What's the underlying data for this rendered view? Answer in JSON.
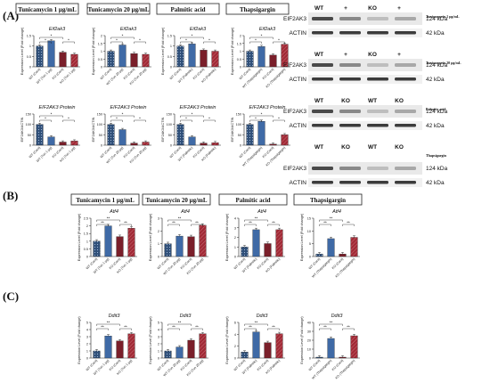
{
  "panel_labels": {
    "A": "(A)",
    "B": "(B)",
    "C": "(C)"
  },
  "colors": {
    "wt_ctrl": "#2f4f78",
    "wt_trt": "#3f6aa6",
    "ko_ctrl": "#7a1f2a",
    "ko_trt": "#a02a36",
    "line": "#333333"
  },
  "sections": {
    "A": {
      "headers": [
        "Tunicamycin 1 μg/mL",
        "Tunicamycin 20 μg/mL",
        "Palmitic acid",
        "Thapsigargin"
      ],
      "row1_title": "Eif2ak3",
      "row1_ylabel": "Expression Level (Fold change)",
      "row2_title": "EIF2AK3 Protein",
      "row2_ylabel": "EIF2AK3/ACTIN",
      "xlabels": [
        [
          "WT (Cont)",
          "WT (Tun 1 μg)",
          "KO (Cont)",
          "KO (Tun 1 μg)"
        ],
        [
          "WT (Cont)",
          "WT (Tun 20 μg)",
          "KO (Cont)",
          "KO (Tun 20 μg)"
        ],
        [
          "WT (Cont)",
          "WT (Palmitic)",
          "KO (Cont)",
          "KO (Palmitic)"
        ],
        [
          "WT (Cont)",
          "WT (Thapsigargin)",
          "KO (Cont)",
          "KO (Thapsigargin)"
        ]
      ]
    },
    "B": {
      "headers": [
        "Tunicamycin 1 μg/mL",
        "Tunicamycin 20 μg/mL",
        "Palmitic acid",
        "Thapsigargin"
      ],
      "title": "Atf4",
      "ylabel": "Expression Level (Fold change)"
    },
    "C": {
      "title": "Ddit3",
      "ylabel": "Expression Level (Fold change)"
    },
    "sig": "*",
    "sig2": "**"
  },
  "blots": [
    {
      "header": [
        "WT",
        "+",
        "KO",
        "+"
      ],
      "treatment": "Tunicamycin 1 μg/mL",
      "rows": [
        "EIF2AK3",
        "ACTIN"
      ],
      "sizes": [
        "124 kDa",
        "42 kDa"
      ]
    },
    {
      "header": [
        "WT",
        "+",
        "KO",
        "+"
      ],
      "treatment": "Tunicamycin 20 μg/mL",
      "rows": [
        "EIF2AK3",
        "ACTIN"
      ],
      "sizes": [
        "124 kDa",
        "42 kDa"
      ]
    },
    {
      "header": [
        "WT",
        "KO",
        "WT",
        "KO"
      ],
      "treatment": "Palmitic acid",
      "rows": [
        "EIF2AK3",
        "ACTIN"
      ],
      "sizes": [
        "124 kDa",
        "42 kDa"
      ]
    },
    {
      "header": [
        "WT",
        "KO",
        "WT",
        "KO"
      ],
      "treatment": "Thapsigargin",
      "rows": [
        "EIF2AK3",
        "ACTIN"
      ],
      "sizes": [
        "124 kDa",
        "42 kDa"
      ]
    }
  ],
  "chart_data": [
    {
      "panel": "A",
      "type": "bar",
      "title": "Eif2ak3",
      "treatment": "Tunicamycin 1 μg/mL",
      "values": [
        1.0,
        1.25,
        0.7,
        0.6
      ],
      "ylim": [
        0,
        1.5
      ],
      "yticks": [
        0.0,
        0.5,
        1.0,
        1.5
      ]
    },
    {
      "panel": "A",
      "type": "bar",
      "title": "Eif2ak3",
      "treatment": "Tunicamycin 20 μg/mL",
      "values": [
        1.0,
        1.4,
        0.85,
        0.8
      ],
      "ylim": [
        0,
        2.0
      ],
      "yticks": [
        0.0,
        0.5,
        1.0,
        1.5,
        2.0
      ]
    },
    {
      "panel": "A",
      "type": "bar",
      "title": "Eif2ak3",
      "treatment": "Palmitic acid",
      "values": [
        1.0,
        1.1,
        0.8,
        0.75
      ],
      "ylim": [
        0,
        1.5
      ],
      "yticks": [
        0.0,
        0.5,
        1.0,
        1.5
      ]
    },
    {
      "panel": "A",
      "type": "bar",
      "title": "Eif2ak3",
      "treatment": "Thapsigargin",
      "values": [
        1.0,
        1.3,
        0.75,
        1.45
      ],
      "ylim": [
        0,
        2.0
      ],
      "yticks": [
        0.0,
        0.5,
        1.0,
        1.5,
        2.0
      ]
    },
    {
      "panel": "A",
      "type": "bar",
      "title": "EIF2AK3 Protein",
      "treatment": "Tunicamycin 1 μg/mL",
      "values": [
        100,
        40,
        15,
        20
      ],
      "ylim": [
        0,
        150
      ],
      "yticks": [
        0,
        50,
        100,
        150
      ]
    },
    {
      "panel": "A",
      "type": "bar",
      "title": "EIF2AK3 Protein",
      "treatment": "Tunicamycin 20 μg/mL",
      "values": [
        100,
        75,
        10,
        15
      ],
      "ylim": [
        0,
        150
      ],
      "yticks": [
        0,
        50,
        100,
        150
      ]
    },
    {
      "panel": "A",
      "type": "bar",
      "title": "EIF2AK3 Protein",
      "treatment": "Palmitic acid",
      "values": [
        100,
        40,
        10,
        12
      ],
      "ylim": [
        0,
        150
      ],
      "yticks": [
        0,
        50,
        100,
        150
      ]
    },
    {
      "panel": "A",
      "type": "bar",
      "title": "EIF2AK3 Protein",
      "treatment": "Thapsigargin",
      "values": [
        100,
        115,
        5,
        50
      ],
      "ylim": [
        0,
        150
      ],
      "yticks": [
        0,
        50,
        100,
        150
      ]
    },
    {
      "panel": "B",
      "type": "bar",
      "title": "Atf4",
      "treatment": "Tunicamycin 1 μg/mL",
      "values": [
        1.0,
        2.0,
        1.3,
        1.85
      ],
      "ylim": [
        0,
        2.5
      ],
      "yticks": [
        0.0,
        0.5,
        1.0,
        1.5,
        2.0,
        2.5
      ],
      "xlabels": [
        "WT (Cont)",
        "WT (Tun 1 μg)",
        "KO (Cont)",
        "KO (Tun 1 μg)"
      ]
    },
    {
      "panel": "B",
      "type": "bar",
      "title": "Atf4",
      "treatment": "Tunicamycin 20 μg/mL",
      "values": [
        1.0,
        1.6,
        1.55,
        2.45
      ],
      "ylim": [
        0,
        3
      ],
      "yticks": [
        0,
        1,
        2,
        3
      ],
      "xlabels": [
        "WT (Cont)",
        "WT (Tun 20 μg)",
        "KO (Cont)",
        "KO (Tun 20 μg)"
      ]
    },
    {
      "panel": "B",
      "type": "bar",
      "title": "Atf4",
      "treatment": "Palmitic acid",
      "values": [
        1.0,
        2.8,
        1.35,
        2.8
      ],
      "ylim": [
        0,
        4
      ],
      "yticks": [
        0,
        1,
        2,
        3,
        4
      ],
      "xlabels": [
        "WT (Cont)",
        "WT (Palmitic)",
        "KO (Cont)",
        "KO (Palmitic)"
      ]
    },
    {
      "panel": "B",
      "type": "bar",
      "title": "Atf4",
      "treatment": "Thapsigargin",
      "values": [
        1.0,
        7.0,
        1.0,
        7.5
      ],
      "ylim": [
        0,
        15
      ],
      "yticks": [
        0,
        5,
        10,
        15
      ],
      "xlabels": [
        "WT (Cont)",
        "WT (Thapsigargin)",
        "KO (Cont)",
        "KO (Thapsigargin)"
      ]
    },
    {
      "panel": "C",
      "type": "bar",
      "title": "Ddit3",
      "treatment": "Tunicamycin 1 μg/mL",
      "values": [
        1.0,
        3.1,
        2.4,
        3.4
      ],
      "ylim": [
        0,
        5
      ],
      "yticks": [
        0,
        1,
        2,
        3,
        4,
        5
      ],
      "xlabels": [
        "WT (Cont)",
        "WT (Tun 1 μg)",
        "KO (Cont)",
        "KO (Tun 1 μg)"
      ]
    },
    {
      "panel": "C",
      "type": "bar",
      "title": "Ddit3",
      "treatment": "Tunicamycin 20 μg/mL",
      "values": [
        1.0,
        1.55,
        2.5,
        3.4
      ],
      "ylim": [
        0,
        5
      ],
      "yticks": [
        0,
        1,
        2,
        3,
        4,
        5
      ],
      "xlabels": [
        "WT (Cont)",
        "WT (Tun 20 μg)",
        "KO (Cont)",
        "KO (Tun 20 μg)"
      ]
    },
    {
      "panel": "C",
      "type": "bar",
      "title": "Ddit3",
      "treatment": "Palmitic acid",
      "values": [
        1.0,
        4.4,
        2.6,
        4.1
      ],
      "ylim": [
        0,
        6
      ],
      "yticks": [
        0,
        2,
        4,
        6
      ],
      "xlabels": [
        "WT (Cont)",
        "WT (Palmitic)",
        "KO (Cont)",
        "KO (Palmitic)"
      ]
    },
    {
      "panel": "C",
      "type": "bar",
      "title": "Ddit3",
      "treatment": "Thapsigargin",
      "values": [
        1.0,
        22,
        1.0,
        25
      ],
      "ylim": [
        0,
        40
      ],
      "yticks": [
        0,
        10,
        20,
        30,
        40
      ],
      "xlabels": [
        "WT (Cont)",
        "WT (Thapsigargin)",
        "KO (Cont)",
        "KO (Thapsigargin)"
      ]
    }
  ]
}
